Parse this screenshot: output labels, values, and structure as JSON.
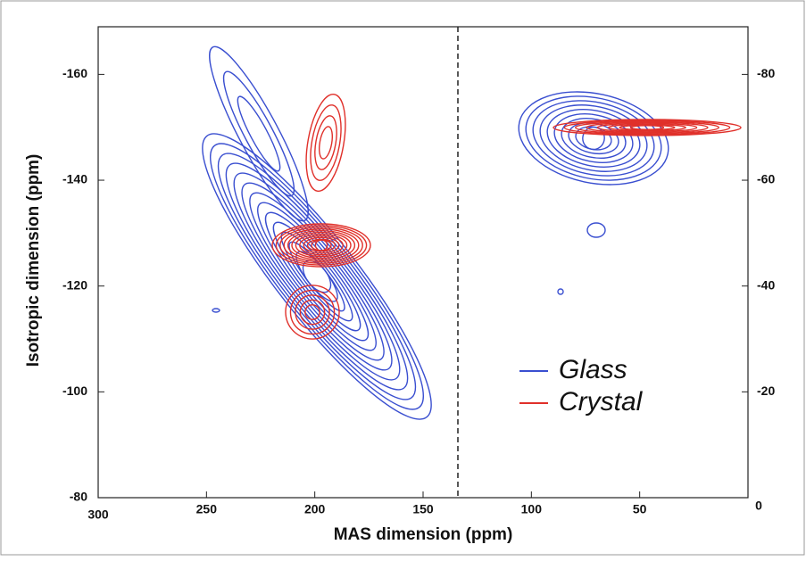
{
  "chart_data": {
    "type": "contour",
    "xlabel": "MAS dimension (ppm)",
    "ylabel": "Isotropic dimension (ppm)",
    "xlim": [
      300,
      0
    ],
    "xticks": [
      300,
      250,
      200,
      150,
      100,
      50,
      0
    ],
    "ylim": [
      -80,
      -169
    ],
    "yticks": [
      -160,
      -140,
      -120,
      -100,
      -80
    ],
    "y2lim": [
      0,
      -89
    ],
    "y2ticks": [
      0,
      -20,
      -40,
      -60,
      -80
    ],
    "series": [
      {
        "name": "Glass",
        "color": "#3a4fd0"
      },
      {
        "name": "Crystal",
        "color": "#e0302a"
      }
    ],
    "legend": "lower right"
  }
}
